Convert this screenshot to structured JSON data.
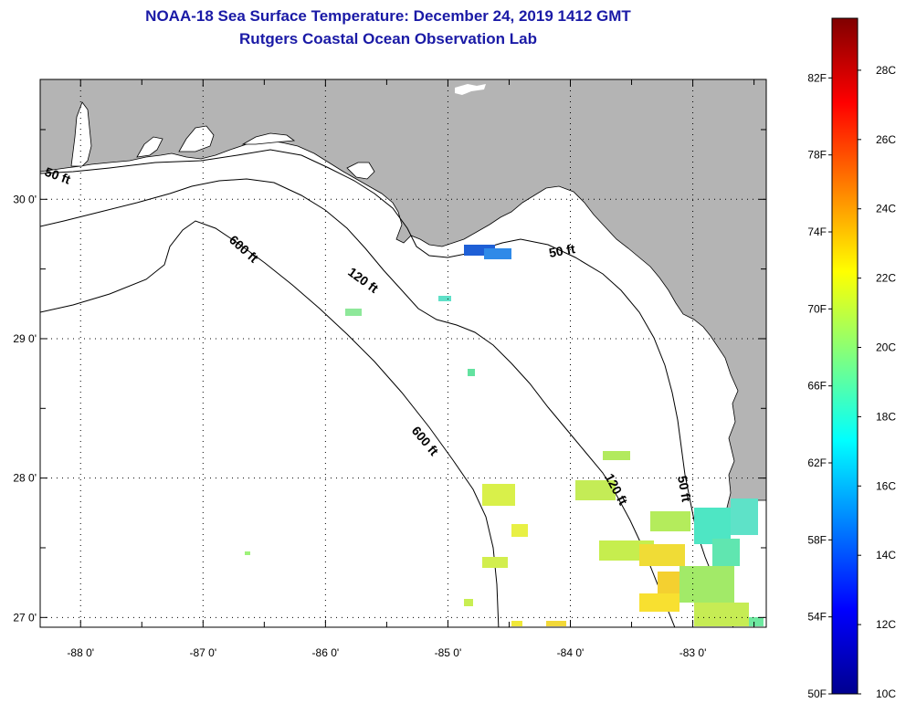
{
  "title": "NOAA-18 Sea Surface Temperature:  December 24, 2019 1412 GMT",
  "subtitle": "Rutgers Coastal Ocean Observation Lab",
  "map": {
    "lon_range": [
      -88.33,
      -82.4
    ],
    "lat_range": [
      26.93,
      30.86
    ],
    "x_ticks": [
      {
        "value": -88,
        "label": "-88 0'"
      },
      {
        "value": -87,
        "label": "-87 0'"
      },
      {
        "value": -86,
        "label": "-86 0'"
      },
      {
        "value": -85,
        "label": "-85 0'"
      },
      {
        "value": -84,
        "label": "-84 0'"
      },
      {
        "value": -83,
        "label": "-83 0'"
      }
    ],
    "y_ticks": [
      {
        "value": 30,
        "label": "30 0'"
      },
      {
        "value": 29,
        "label": "29 0'"
      },
      {
        "value": 28,
        "label": "28 0'"
      },
      {
        "value": 27,
        "label": "27 0'"
      }
    ],
    "contour_labels": [
      {
        "text": "50 ft",
        "name": "contour-label-50ft-west"
      },
      {
        "text": "50 ft",
        "name": "contour-label-50ft-bigbend"
      },
      {
        "text": "50 ft",
        "name": "contour-label-50ft-south"
      },
      {
        "text": "120 ft",
        "name": "contour-label-120ft-north"
      },
      {
        "text": "120 ft",
        "name": "contour-label-120ft-south"
      },
      {
        "text": "600 ft",
        "name": "contour-label-600ft-north"
      },
      {
        "text": "600 ft",
        "name": "contour-label-600ft-south"
      }
    ],
    "colors": {
      "land": "#b4b4b4",
      "water": "#ffffff",
      "grid": "#000000"
    }
  },
  "colorbar": {
    "fahrenheit_labels": [
      "82F",
      "78F",
      "74F",
      "70F",
      "66F",
      "62F",
      "58F",
      "54F",
      "50F"
    ],
    "celsius_labels": [
      "28C",
      "26C",
      "24C",
      "22C",
      "20C",
      "18C",
      "16C",
      "14C",
      "12C",
      "10C"
    ],
    "colormap": "jet",
    "range_c": [
      10,
      29.5
    ]
  }
}
